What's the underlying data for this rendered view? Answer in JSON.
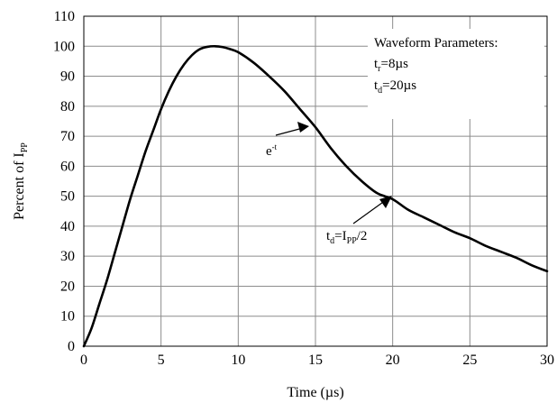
{
  "chart_data": {
    "type": "line",
    "xlabel": "Time (µs)",
    "ylabel": {
      "main": "Percent of I",
      "sub": "PP"
    },
    "xlim": [
      0,
      30
    ],
    "ylim": [
      0,
      110
    ],
    "xticks": [
      0,
      5,
      10,
      15,
      20,
      25,
      30
    ],
    "yticks": [
      0,
      10,
      20,
      30,
      40,
      50,
      60,
      70,
      80,
      90,
      100,
      110
    ],
    "grid": true,
    "series": [
      {
        "x": [
          0,
          0.5,
          1,
          1.5,
          2,
          2.5,
          3,
          3.5,
          4,
          4.5,
          5,
          5.5,
          6,
          6.5,
          7,
          7.5,
          8,
          8.5,
          9,
          9.5,
          10,
          11,
          12,
          13,
          14,
          15,
          16,
          17,
          18,
          19,
          20,
          21,
          22,
          23,
          24,
          25,
          26,
          27,
          28,
          29,
          30
        ],
        "y": [
          0,
          6,
          14,
          22,
          31,
          40,
          49,
          57,
          65,
          72,
          79,
          85,
          90,
          94,
          97,
          99,
          99.8,
          100,
          99.7,
          99,
          98,
          94.5,
          90,
          85,
          79,
          73,
          66,
          60,
          55,
          51,
          49,
          45.5,
          43,
          40.5,
          38,
          36,
          33.5,
          31.5,
          29.5,
          27,
          25
        ]
      }
    ],
    "annotations": {
      "params_title": "Waveform Parameters:",
      "tr": {
        "main": "t",
        "sub": "r",
        "rest": "=8µs"
      },
      "td": {
        "main": "t",
        "sub": "d",
        "rest": "=20µs"
      },
      "exp": {
        "main": "e",
        "sup": "-t"
      },
      "half": {
        "t": "t",
        "tsub": "d",
        "eq": "=I",
        "isub": "PP",
        "rest": "/2"
      }
    }
  }
}
